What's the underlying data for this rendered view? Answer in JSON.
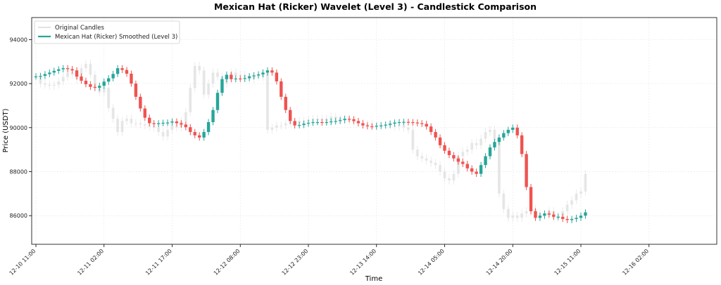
{
  "chart_data": {
    "type": "candlestick",
    "title": "Mexican Hat (Ricker) Wavelet (Level 3) - Candlestick Comparison",
    "xlabel": "Time",
    "ylabel": "Price (USDT)",
    "ylim": [
      84700,
      95000
    ],
    "y_ticks": [
      86000,
      88000,
      90000,
      92000,
      94000
    ],
    "x_tick_labels": [
      "12-10 11:00",
      "12-11 02:00",
      "12-11 17:00",
      "12-12 08:00",
      "12-12 23:00",
      "12-13 14:00",
      "12-14 05:00",
      "12-14 20:00",
      "12-15 11:00",
      "12-16 02:00"
    ],
    "candles_per_tick": 15,
    "grid": true,
    "legend_position": "top-left",
    "colors": {
      "up": "#26a69a",
      "down": "#ef5350",
      "original": "#d9d9d9"
    },
    "series": [
      {
        "name": "Original Candles",
        "close": [
          92300,
          92000,
          91950,
          91900,
          91950,
          92100,
          92300,
          92500,
          92400,
          92200,
          92700,
          92900,
          92400,
          91800,
          91600,
          91800,
          90900,
          90400,
          89800,
          90300,
          90400,
          90200,
          90200,
          90150,
          90100,
          90050,
          90000,
          89800,
          89600,
          89900,
          90100,
          90000,
          90300,
          90700,
          91800,
          92800,
          92600,
          91500,
          92000,
          92500,
          92300,
          92000,
          92400,
          92500,
          92350,
          92400,
          92300,
          92200,
          92350,
          92300,
          92500,
          89900,
          90000,
          90100,
          90100,
          90200,
          90250,
          90200,
          90300,
          90300,
          90350,
          90400,
          90350,
          90400,
          90300,
          90500,
          90400,
          90350,
          90400,
          90300,
          90250,
          90200,
          90150,
          90150,
          90100,
          90050,
          90100,
          90150,
          90100,
          90050,
          90100,
          90000,
          89900,
          89000,
          88700,
          88600,
          88500,
          88400,
          88300,
          88000,
          87700,
          87600,
          87900,
          88700,
          88900,
          89000,
          89300,
          89200,
          89500,
          89800,
          89900,
          89400,
          87000,
          86300,
          85900,
          86000,
          85900,
          86100,
          86200,
          86300,
          86100,
          86000,
          86000,
          86200,
          85900,
          86000,
          86200,
          86500,
          86700,
          87000,
          87100,
          87900
        ]
      },
      {
        "name": "Mexican Hat (Ricker) Smoothed (Level 3)",
        "close": [
          92330,
          92350,
          92430,
          92500,
          92580,
          92650,
          92700,
          92660,
          92600,
          92320,
          92130,
          91970,
          91850,
          91810,
          91900,
          92090,
          92240,
          92440,
          92700,
          92620,
          92450,
          92000,
          91400,
          90870,
          90450,
          90200,
          90160,
          90200,
          90220,
          90230,
          90280,
          90200,
          90140,
          90020,
          89800,
          89650,
          89550,
          89800,
          90250,
          90800,
          91580,
          92200,
          92400,
          92200,
          92230,
          92210,
          92250,
          92330,
          92370,
          92420,
          92500,
          92600,
          92500,
          92100,
          91400,
          90800,
          90300,
          90100,
          90120,
          90180,
          90220,
          90250,
          90250,
          90230,
          90250,
          90280,
          90300,
          90340,
          90400,
          90380,
          90300,
          90200,
          90100,
          90060,
          90050,
          90080,
          90100,
          90130,
          90180,
          90230,
          90250,
          90260,
          90250,
          90230,
          90200,
          90170,
          90050,
          89800,
          89550,
          89200,
          88950,
          88750,
          88600,
          88450,
          88350,
          88150,
          88000,
          87900,
          88300,
          88700,
          89100,
          89350,
          89550,
          89750,
          89900,
          90000,
          89650,
          88800,
          87300,
          86200,
          85900,
          86000,
          86100,
          86050,
          85950,
          85950,
          85850,
          85800,
          85850,
          85900,
          86000,
          86150
        ]
      }
    ]
  }
}
